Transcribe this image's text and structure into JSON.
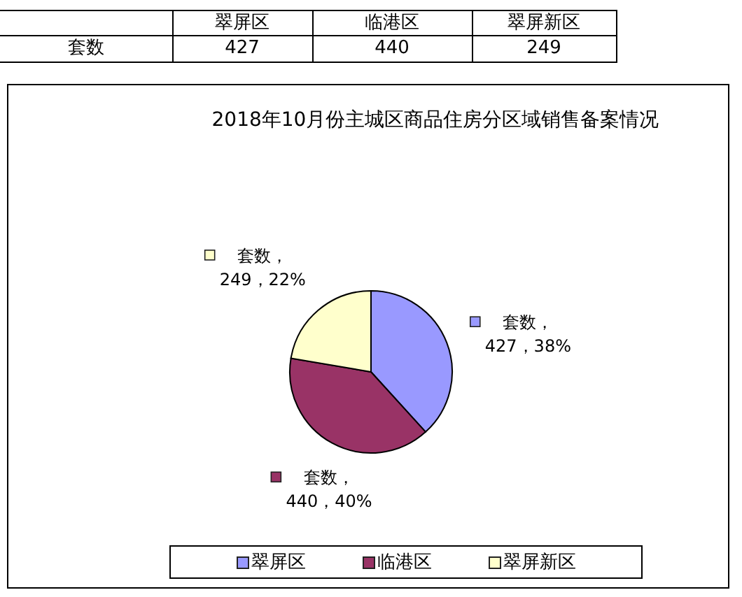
{
  "chart_data": [
    {
      "type": "other",
      "categories": [
        "翠屏区",
        "临港区",
        "翠屏新区"
      ],
      "series": [
        {
          "name": "套数",
          "values": [
            427,
            440,
            249
          ]
        }
      ],
      "data_labels": true
    },
    {
      "type": "pie",
      "title": "2018年10月份主城区商品住房分区域销售备案情况",
      "categories": [
        "翠屏区",
        "临港区",
        "翠屏新区"
      ],
      "values": [
        427,
        440,
        249
      ],
      "value_labels": [
        "套数，427，38%",
        "套数，440，40%",
        "套数，249，22%"
      ],
      "colors": [
        "#9999ff",
        "#993366",
        "#ffffcc"
      ],
      "legend": "bottom"
    }
  ]
}
